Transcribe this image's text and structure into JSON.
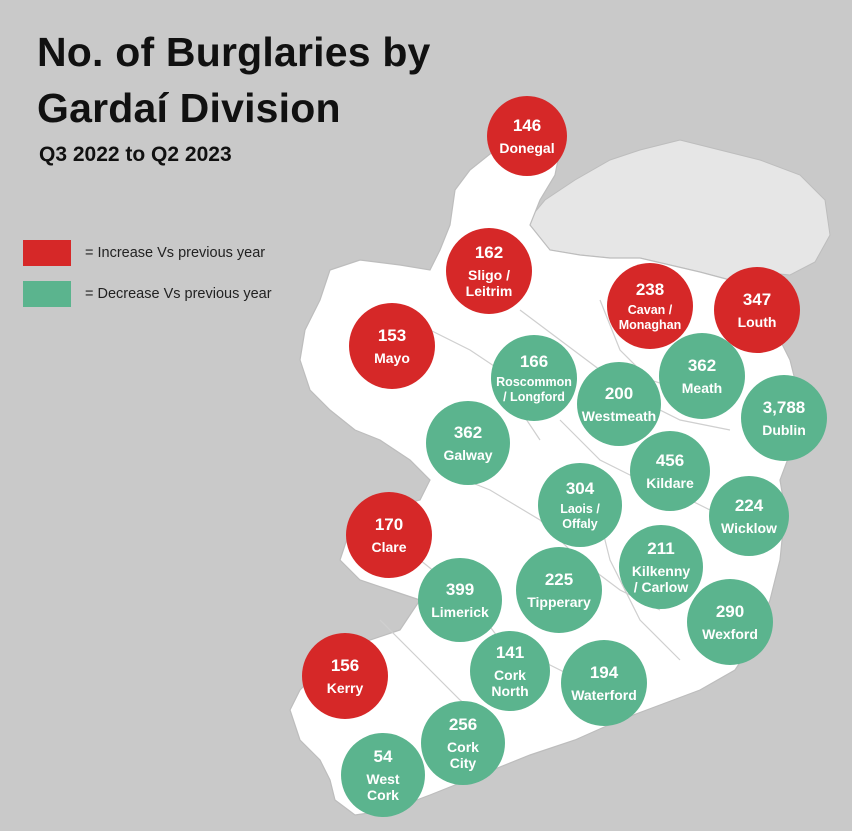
{
  "title_line1": "No. of Burglaries by",
  "title_line2": "Gardaí Division",
  "subtitle": "Q3 2022 to Q2 2023",
  "legend": {
    "increase": {
      "label": "= Increase Vs previous year",
      "color": "#d62828"
    },
    "decrease": {
      "label": "= Decrease Vs previous year",
      "color": "#5bb48e"
    }
  },
  "divisions": [
    {
      "name": "Donegal",
      "value": "146",
      "trend": "increase"
    },
    {
      "name": "Sligo / Leitrim",
      "value": "162",
      "trend": "increase"
    },
    {
      "name": "Cavan / Monaghan",
      "value": "238",
      "trend": "increase"
    },
    {
      "name": "Louth",
      "value": "347",
      "trend": "increase"
    },
    {
      "name": "Mayo",
      "value": "153",
      "trend": "increase"
    },
    {
      "name": "Roscommon / Longford",
      "value": "166",
      "trend": "decrease"
    },
    {
      "name": "Meath",
      "value": "362",
      "trend": "decrease"
    },
    {
      "name": "Westmeath",
      "value": "200",
      "trend": "decrease"
    },
    {
      "name": "Dublin",
      "value": "3,788",
      "trend": "decrease"
    },
    {
      "name": "Galway",
      "value": "362",
      "trend": "decrease"
    },
    {
      "name": "Kildare",
      "value": "456",
      "trend": "decrease"
    },
    {
      "name": "Laois / Offaly",
      "value": "304",
      "trend": "decrease"
    },
    {
      "name": "Wicklow",
      "value": "224",
      "trend": "decrease"
    },
    {
      "name": "Clare",
      "value": "170",
      "trend": "increase"
    },
    {
      "name": "Kilkenny / Carlow",
      "value": "211",
      "trend": "decrease"
    },
    {
      "name": "Limerick",
      "value": "399",
      "trend": "decrease"
    },
    {
      "name": "Tipperary",
      "value": "225",
      "trend": "decrease"
    },
    {
      "name": "Wexford",
      "value": "290",
      "trend": "decrease"
    },
    {
      "name": "Kerry",
      "value": "156",
      "trend": "increase"
    },
    {
      "name": "Cork North",
      "value": "141",
      "trend": "decrease"
    },
    {
      "name": "Waterford",
      "value": "194",
      "trend": "decrease"
    },
    {
      "name": "Cork City",
      "value": "256",
      "trend": "decrease"
    },
    {
      "name": "West Cork",
      "value": "54",
      "trend": "decrease"
    }
  ]
}
